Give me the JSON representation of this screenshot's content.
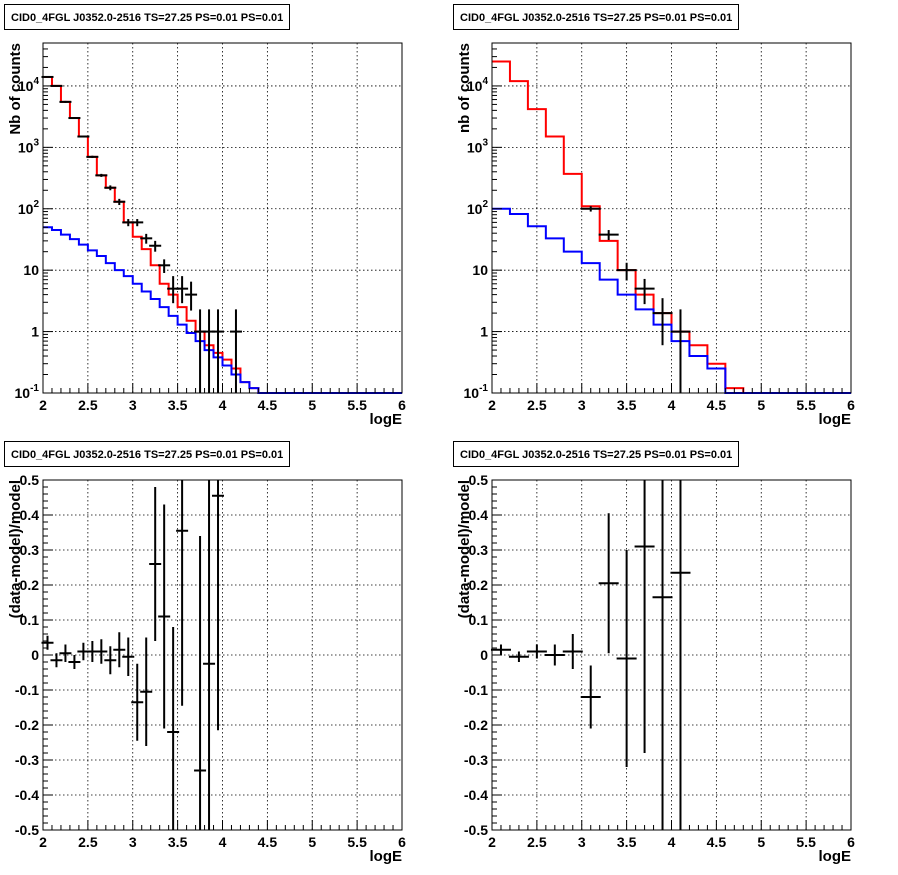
{
  "chart_data": [
    {
      "type": "line",
      "title": "CID0_4FGL J0352.0-2516 TS=27.25 PS=0.01 PS=0.01",
      "xlabel": "logE",
      "ylabel": "Nb of counts",
      "xlim": [
        2,
        6
      ],
      "ylim": [
        0.1,
        50000
      ],
      "yscale": "log",
      "grid": true,
      "x_ticks": [
        "2",
        "2.5",
        "3",
        "3.5",
        "4",
        "4.5",
        "5",
        "5.5",
        "6"
      ],
      "y_ticks": [
        "10^-1",
        "1",
        "10",
        "10^2",
        "10^3",
        "10^4"
      ],
      "series": [
        {
          "color": "#ff0000",
          "style": "step",
          "bin_edges": [
            2.0,
            2.1,
            2.2,
            2.3,
            2.4,
            2.5,
            2.6,
            2.7,
            2.8,
            2.9,
            3.0,
            3.1,
            3.2,
            3.3,
            3.4,
            3.5,
            3.6,
            3.7,
            3.8,
            3.9,
            4.0,
            4.1,
            4.2,
            4.3,
            4.4,
            4.5,
            4.6,
            4.7,
            4.8,
            4.9,
            5.0,
            5.1,
            5.2,
            5.3,
            5.4,
            5.5,
            5.6,
            5.7,
            5.8,
            5.9,
            6.0
          ],
          "values": [
            14000,
            10000,
            5500,
            3000,
            1500,
            700,
            350,
            220,
            130,
            60,
            35,
            22,
            12,
            6,
            4,
            2.5,
            1.5,
            1,
            0.6,
            0.45,
            0.35,
            0.25,
            0.15,
            0.12,
            0.1,
            0.1,
            0.1,
            0.1,
            0.1,
            0.1,
            0.1,
            0.1,
            0.1,
            0.1,
            0.1,
            0.1,
            0.1,
            0.1,
            0.1,
            0.1
          ]
        },
        {
          "color": "#0000ff",
          "style": "step",
          "bin_edges": [
            2.0,
            2.1,
            2.2,
            2.3,
            2.4,
            2.5,
            2.6,
            2.7,
            2.8,
            2.9,
            3.0,
            3.1,
            3.2,
            3.3,
            3.4,
            3.5,
            3.6,
            3.7,
            3.8,
            3.9,
            4.0,
            4.1,
            4.2,
            4.3,
            4.4,
            4.5,
            4.6,
            4.7,
            4.8,
            4.9,
            5.0,
            5.1,
            5.2,
            5.3,
            5.4,
            5.5,
            5.6,
            5.7,
            5.8,
            5.9,
            6.0
          ],
          "values": [
            50,
            45,
            38,
            32,
            26,
            21,
            17,
            13,
            10,
            8,
            6,
            4.5,
            3.4,
            2.5,
            1.8,
            1.3,
            0.95,
            0.7,
            0.5,
            0.38,
            0.28,
            0.2,
            0.15,
            0.12,
            0.1,
            0.1,
            0.1,
            0.1,
            0.1,
            0.1,
            0.1,
            0.1,
            0.1,
            0.1,
            0.1,
            0.1,
            0.1,
            0.1,
            0.1,
            0.1
          ]
        }
      ],
      "points": {
        "color": "#000000",
        "x": [
          2.05,
          2.15,
          2.25,
          2.35,
          2.45,
          2.55,
          2.65,
          2.75,
          2.85,
          2.95,
          3.05,
          3.15,
          3.25,
          3.35,
          3.45,
          3.55,
          3.65,
          3.75,
          3.85,
          3.95,
          4.15
        ],
        "y": [
          14000,
          10000,
          5500,
          3000,
          1500,
          700,
          350,
          220,
          130,
          60,
          60,
          33,
          25,
          12,
          5,
          5,
          4,
          1,
          1,
          1,
          1
        ],
        "y_low": [
          13800,
          9800,
          5300,
          2900,
          1450,
          670,
          330,
          200,
          115,
          52,
          52,
          27,
          20,
          9,
          2.9,
          2.9,
          2.2,
          0.1,
          0.1,
          0.1,
          0.1
        ],
        "y_high": [
          14200,
          10200,
          5700,
          3100,
          1550,
          730,
          370,
          240,
          145,
          68,
          68,
          39,
          30,
          15,
          8,
          8,
          6.5,
          2.3,
          2.3,
          2.3,
          2.3
        ]
      }
    },
    {
      "type": "line",
      "title": "CID0_4FGL J0352.0-2516 TS=27.25 PS=0.01 PS=0.01",
      "xlabel": "logE",
      "ylabel": "nb of counts",
      "xlim": [
        2,
        6
      ],
      "ylim": [
        0.1,
        50000
      ],
      "yscale": "log",
      "grid": true,
      "x_ticks": [
        "2",
        "2.5",
        "3",
        "3.5",
        "4",
        "4.5",
        "5",
        "5.5",
        "6"
      ],
      "y_ticks": [
        "10^-1",
        "1",
        "10",
        "10^2",
        "10^3",
        "10^4"
      ],
      "series": [
        {
          "color": "#ff0000",
          "style": "step",
          "bin_edges": [
            2.0,
            2.2,
            2.4,
            2.6,
            2.8,
            3.0,
            3.2,
            3.4,
            3.6,
            3.8,
            4.0,
            4.2,
            4.4,
            4.6,
            4.8,
            5.0,
            5.2,
            5.4,
            5.6,
            5.8,
            6.0
          ],
          "values": [
            25000,
            12000,
            4200,
            1500,
            370,
            110,
            30,
            10,
            4,
            2,
            1,
            0.6,
            0.3,
            0.12,
            0.1,
            0.1,
            0.1,
            0.1,
            0.1,
            0.1
          ]
        },
        {
          "color": "#0000ff",
          "style": "step",
          "bin_edges": [
            2.0,
            2.2,
            2.4,
            2.6,
            2.8,
            3.0,
            3.2,
            3.4,
            3.6,
            3.8,
            4.0,
            4.2,
            4.4,
            4.6,
            4.8,
            5.0,
            5.2,
            5.4,
            5.6,
            5.8,
            6.0
          ],
          "values": [
            100,
            82,
            52,
            33,
            20,
            13,
            7,
            4,
            2.3,
            1.3,
            0.7,
            0.4,
            0.25,
            0.1,
            0.1,
            0.1,
            0.1,
            0.1,
            0.1,
            0.1
          ]
        }
      ],
      "points": {
        "color": "#000000",
        "x": [
          3.1,
          3.3,
          3.5,
          3.7,
          3.9,
          4.1
        ],
        "y": [
          100,
          38,
          10,
          5,
          2,
          1
        ],
        "y_low": [
          90,
          31,
          6.8,
          2.8,
          0.6,
          0.1
        ],
        "y_high": [
          110,
          45,
          13.2,
          7.2,
          3.5,
          2.3
        ]
      }
    },
    {
      "type": "scatter",
      "title": "CID0_4FGL J0352.0-2516 TS=27.25 PS=0.01 PS=0.01",
      "xlabel": "logE",
      "ylabel": "(data-model)/model",
      "xlim": [
        2,
        6
      ],
      "ylim": [
        -0.5,
        0.5
      ],
      "grid": true,
      "x_ticks": [
        "2",
        "2.5",
        "3",
        "3.5",
        "4",
        "4.5",
        "5",
        "5.5",
        "6"
      ],
      "y_ticks": [
        "-0.5",
        "-0.4",
        "-0.3",
        "-0.2",
        "-0.1",
        "0",
        "0.1",
        "0.2",
        "0.3",
        "0.4",
        "0.5"
      ],
      "points": {
        "color": "#000000",
        "x": [
          2.05,
          2.15,
          2.25,
          2.35,
          2.45,
          2.55,
          2.65,
          2.75,
          2.85,
          2.95,
          3.05,
          3.15,
          3.25,
          3.35,
          3.45,
          3.55,
          3.75,
          3.85,
          3.95
        ],
        "y": [
          0.035,
          -0.015,
          0.005,
          -0.02,
          0.01,
          0.01,
          0.01,
          -0.015,
          0.015,
          -0.005,
          -0.135,
          -0.105,
          0.26,
          0.11,
          -0.22,
          0.355,
          -0.33,
          -0.025,
          0.455
        ],
        "y_err": [
          0.02,
          0.02,
          0.025,
          0.02,
          0.025,
          0.03,
          0.035,
          0.04,
          0.05,
          0.055,
          0.11,
          0.155,
          0.22,
          0.32,
          0.3,
          0.5,
          0.67,
          0.67,
          0.67
        ]
      }
    },
    {
      "type": "scatter",
      "title": "CID0_4FGL J0352.0-2516 TS=27.25 PS=0.01 PS=0.01",
      "xlabel": "logE",
      "ylabel": "(data-model)/model",
      "xlim": [
        2,
        6
      ],
      "ylim": [
        -0.5,
        0.5
      ],
      "grid": true,
      "x_ticks": [
        "2",
        "2.5",
        "3",
        "3.5",
        "4",
        "4.5",
        "5",
        "5.5",
        "6"
      ],
      "y_ticks": [
        "-0.5",
        "-0.4",
        "-0.3",
        "-0.2",
        "-0.1",
        "0",
        "0.1",
        "0.2",
        "0.3",
        "0.4",
        "0.5"
      ],
      "points": {
        "color": "#000000",
        "x": [
          2.1,
          2.3,
          2.5,
          2.7,
          2.9,
          3.1,
          3.3,
          3.5,
          3.7,
          3.9,
          4.1
        ],
        "y": [
          0.015,
          -0.005,
          0.01,
          0.0,
          0.01,
          -0.12,
          0.205,
          -0.01,
          0.31,
          0.165,
          0.235
        ],
        "y_err": [
          0.015,
          0.015,
          0.02,
          0.03,
          0.05,
          0.09,
          0.2,
          0.31,
          0.59,
          0.7,
          0.8
        ]
      }
    }
  ]
}
